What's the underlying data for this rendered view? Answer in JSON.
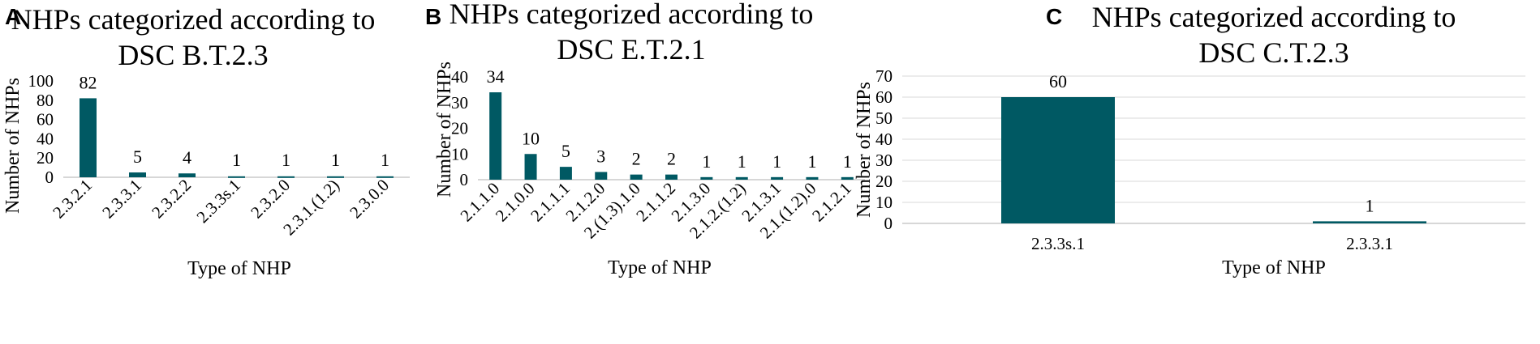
{
  "chart_data": [
    {
      "type": "bar",
      "panel": "A",
      "title_lines": [
        "NHPs categorized according to",
        "DSC B.T.2.3"
      ],
      "xlabel": "Type of NHP",
      "ylabel": "Number of NHPs",
      "categories": [
        "2.3.2.1",
        "2.3.3.1",
        "2.3.2.2",
        "2.3.3s.1",
        "2.3.2.0",
        "2.3.1.(1.2)",
        "2.3.0.0"
      ],
      "values": [
        82,
        5,
        4,
        1,
        1,
        1,
        1
      ],
      "ylim": [
        0,
        100
      ],
      "yticks": [
        0,
        20,
        40,
        60,
        80,
        100
      ],
      "grid": false,
      "rotated_ticks": true
    },
    {
      "type": "bar",
      "panel": "B",
      "title_lines": [
        "NHPs categorized according to",
        "DSC E.T.2.1"
      ],
      "xlabel": "Type of NHP",
      "ylabel": "Number of NHPs",
      "categories": [
        "2.1.1.0",
        "2.1.0.0",
        "2.1.1.1",
        "2.1.2.0",
        "2.(1.3).1.0",
        "2.1.1.2",
        "2.1.3.0",
        "2.1.2.(1.2)",
        "2.1.3.1",
        "2.1.(1.2).0",
        "2.1.2.1"
      ],
      "values": [
        34,
        10,
        5,
        3,
        2,
        2,
        1,
        1,
        1,
        1,
        1
      ],
      "ylim": [
        0,
        40
      ],
      "yticks": [
        0,
        10,
        20,
        30,
        40
      ],
      "grid": false,
      "rotated_ticks": true
    },
    {
      "type": "bar",
      "panel": "C",
      "title_lines": [
        "NHPs categorized according to",
        "DSC C.T.2.3"
      ],
      "xlabel": "Type of NHP",
      "ylabel": "Number of NHPs",
      "categories": [
        "2.3.3s.1",
        "2.3.3.1"
      ],
      "values": [
        60,
        1
      ],
      "ylim": [
        0,
        70
      ],
      "yticks": [
        0,
        10,
        20,
        30,
        40,
        50,
        60,
        70
      ],
      "grid": true,
      "rotated_ticks": false
    }
  ],
  "colors": {
    "bar": "#005963",
    "grid": "#d9d9d9",
    "axis": "#bfbfbf"
  }
}
